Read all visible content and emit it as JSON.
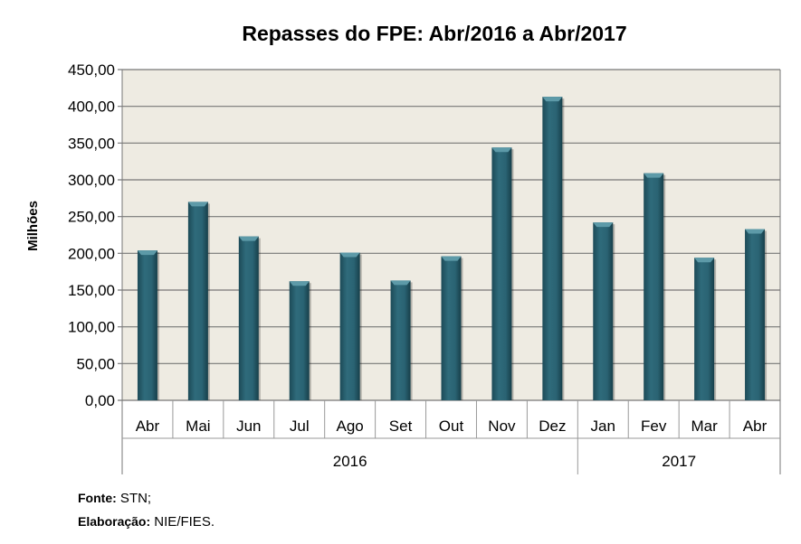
{
  "chart_data": {
    "type": "bar",
    "title": "Repasses do FPE: Abr/2016 a Abr/2017",
    "ylabel": "Milhões",
    "xlabel": "",
    "ylim": [
      0,
      450
    ],
    "yticks": [
      "0,00",
      "50,00",
      "100,00",
      "150,00",
      "200,00",
      "250,00",
      "300,00",
      "350,00",
      "400,00",
      "450,00"
    ],
    "categories": [
      "Abr",
      "Mai",
      "Jun",
      "Jul",
      "Ago",
      "Set",
      "Out",
      "Nov",
      "Dez",
      "Jan",
      "Fev",
      "Mar",
      "Abr"
    ],
    "values": [
      204,
      270,
      223,
      162,
      201,
      163,
      196,
      344,
      413,
      242,
      309,
      194,
      233
    ],
    "groups": [
      {
        "label": "2016",
        "count": 9
      },
      {
        "label": "2017",
        "count": 4
      }
    ],
    "grid": true,
    "colors": {
      "bar": "#2a6373",
      "bar_light": "#5d9aa8",
      "plot_bg": "#eeebe2"
    }
  },
  "footer": {
    "source_label": "Fonte:",
    "source_value": " STN;",
    "credit_label": "Elaboração:",
    "credit_value": " NIE/FIES."
  }
}
